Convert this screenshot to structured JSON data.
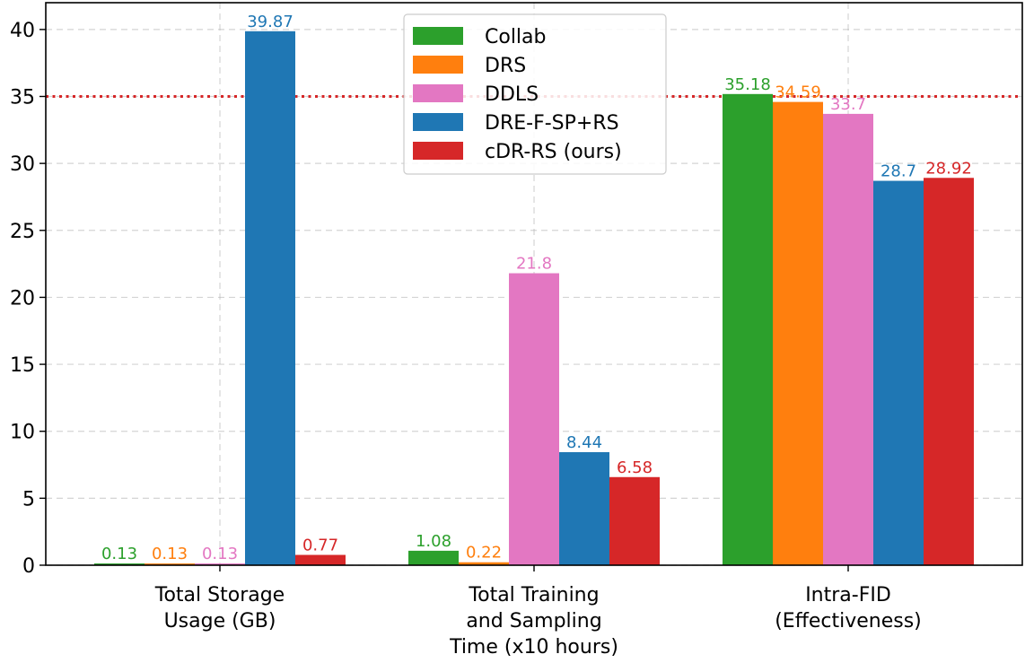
{
  "chart_data": {
    "type": "bar",
    "categories": [
      [
        "Total Storage",
        "Usage (GB)"
      ],
      [
        "Total Training",
        "and Sampling",
        "Time (x10 hours)"
      ],
      [
        "Intra-FID",
        "(Effectiveness)"
      ]
    ],
    "series": [
      {
        "name": "Collab",
        "color": "#2ca02c",
        "values": [
          0.13,
          1.08,
          35.18
        ],
        "labels": [
          "0.13",
          "1.08",
          "35.18"
        ]
      },
      {
        "name": "DRS",
        "color": "#ff7f0e",
        "values": [
          0.13,
          0.22,
          34.59
        ],
        "labels": [
          "0.13",
          "0.22",
          "34.59"
        ]
      },
      {
        "name": "DDLS",
        "color": "#e377c2",
        "values": [
          0.13,
          21.8,
          33.7
        ],
        "labels": [
          "0.13",
          "21.8",
          "33.7"
        ]
      },
      {
        "name": "DRE-F-SP+RS",
        "color": "#1f77b4",
        "values": [
          39.87,
          8.44,
          28.7
        ],
        "labels": [
          "39.87",
          "8.44",
          "28.7"
        ]
      },
      {
        "name": "cDR-RS (ours)",
        "color": "#d62728",
        "values": [
          0.77,
          6.58,
          28.92
        ],
        "labels": [
          "0.77",
          "6.58",
          "28.92"
        ]
      }
    ],
    "ylim": [
      0,
      42
    ],
    "yticks": [
      0,
      5,
      10,
      15,
      20,
      25,
      30,
      35,
      40
    ],
    "reference_line": {
      "y": 35,
      "color": "#d62728",
      "style": "dotted"
    },
    "grid": true,
    "legend_position": "top-center",
    "title": "",
    "xlabel": "",
    "ylabel": ""
  }
}
